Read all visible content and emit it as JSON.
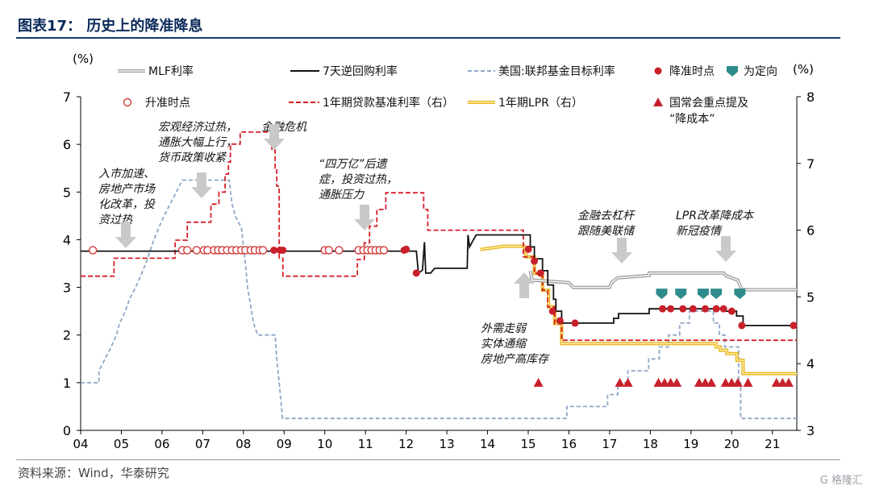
{
  "header": {
    "title": "图表17：  历史上的降准降息"
  },
  "footer": {
    "source": "资料来源：Wind，华泰研究"
  },
  "watermark": {
    "text": "G 格隆汇"
  },
  "chart_data": {
    "type": "line",
    "x_ticks": [
      "04",
      "05",
      "06",
      "07",
      "08",
      "09",
      "10",
      "11",
      "12",
      "13",
      "14",
      "15",
      "16",
      "17",
      "18",
      "19",
      "20",
      "21"
    ],
    "x_range": [
      2004.0,
      2021.6
    ],
    "y_left": {
      "unit": "(%)",
      "range": [
        0,
        7
      ],
      "ticks": [
        0,
        1,
        2,
        3,
        4,
        5,
        6,
        7
      ]
    },
    "y_right": {
      "unit": "(%)",
      "range": [
        3,
        8
      ],
      "ticks": [
        3,
        4,
        5,
        6,
        7,
        8
      ]
    },
    "legend": [
      {
        "label": "MLF利率",
        "symbol": "double-gray-line"
      },
      {
        "label": "7天逆回购利率",
        "symbol": "black-line"
      },
      {
        "label": "美国:联邦基金目标利率",
        "symbol": "blue-dash-line"
      },
      {
        "label": "降准时点",
        "symbol": "red-dot"
      },
      {
        "label": "为定向",
        "symbol": "teal-shield"
      },
      {
        "label": "升准时点",
        "symbol": "hollow-red-dot"
      },
      {
        "label": "1年期贷款基准利率（右）",
        "symbol": "red-dash-line"
      },
      {
        "label": "1年期LPR（右）",
        "symbol": "yellow-line"
      },
      {
        "label": "国常会重点提及\n“降成本”",
        "symbol": "red-triangle"
      }
    ],
    "series": {
      "fed_funds": [
        [
          2004.0,
          1.0
        ],
        [
          2004.45,
          1.0
        ],
        [
          2004.45,
          1.25
        ],
        [
          2004.6,
          1.5
        ],
        [
          2004.75,
          1.75
        ],
        [
          2004.88,
          2.0
        ],
        [
          2004.96,
          2.25
        ],
        [
          2005.1,
          2.5
        ],
        [
          2005.2,
          2.75
        ],
        [
          2005.35,
          3.0
        ],
        [
          2005.48,
          3.25
        ],
        [
          2005.6,
          3.5
        ],
        [
          2005.7,
          3.75
        ],
        [
          2005.8,
          4.0
        ],
        [
          2005.92,
          4.25
        ],
        [
          2006.05,
          4.5
        ],
        [
          2006.2,
          4.75
        ],
        [
          2006.35,
          5.0
        ],
        [
          2006.5,
          5.25
        ],
        [
          2007.65,
          5.25
        ],
        [
          2007.72,
          4.75
        ],
        [
          2007.8,
          4.5
        ],
        [
          2007.95,
          4.25
        ],
        [
          2008.05,
          3.5
        ],
        [
          2008.1,
          3.0
        ],
        [
          2008.25,
          2.25
        ],
        [
          2008.35,
          2.0
        ],
        [
          2008.78,
          2.0
        ],
        [
          2008.82,
          1.5
        ],
        [
          2008.88,
          1.0
        ],
        [
          2008.96,
          0.25
        ],
        [
          2015.95,
          0.25
        ],
        [
          2015.95,
          0.5
        ],
        [
          2016.95,
          0.5
        ],
        [
          2016.95,
          0.75
        ],
        [
          2017.2,
          0.75
        ],
        [
          2017.2,
          1.0
        ],
        [
          2017.45,
          1.0
        ],
        [
          2017.45,
          1.25
        ],
        [
          2017.96,
          1.25
        ],
        [
          2017.96,
          1.5
        ],
        [
          2018.22,
          1.5
        ],
        [
          2018.22,
          1.75
        ],
        [
          2018.45,
          1.75
        ],
        [
          2018.45,
          2.0
        ],
        [
          2018.72,
          2.0
        ],
        [
          2018.72,
          2.25
        ],
        [
          2018.96,
          2.25
        ],
        [
          2018.96,
          2.5
        ],
        [
          2019.55,
          2.5
        ],
        [
          2019.55,
          2.25
        ],
        [
          2019.7,
          2.25
        ],
        [
          2019.7,
          2.0
        ],
        [
          2019.83,
          2.0
        ],
        [
          2019.83,
          1.75
        ],
        [
          2020.17,
          1.75
        ],
        [
          2020.17,
          1.0
        ],
        [
          2020.22,
          1.0
        ],
        [
          2020.22,
          0.25
        ],
        [
          2021.6,
          0.25
        ]
      ],
      "lending_rate_right": [
        [
          2004.0,
          5.31
        ],
        [
          2004.82,
          5.31
        ],
        [
          2004.82,
          5.58
        ],
        [
          2006.32,
          5.58
        ],
        [
          2006.32,
          5.85
        ],
        [
          2006.62,
          5.85
        ],
        [
          2006.62,
          6.12
        ],
        [
          2007.2,
          6.12
        ],
        [
          2007.2,
          6.39
        ],
        [
          2007.4,
          6.39
        ],
        [
          2007.4,
          6.57
        ],
        [
          2007.55,
          6.57
        ],
        [
          2007.55,
          6.84
        ],
        [
          2007.63,
          6.84
        ],
        [
          2007.63,
          7.02
        ],
        [
          2007.68,
          7.02
        ],
        [
          2007.68,
          7.29
        ],
        [
          2007.92,
          7.29
        ],
        [
          2007.92,
          7.47
        ],
        [
          2008.7,
          7.47
        ],
        [
          2008.7,
          7.2
        ],
        [
          2008.78,
          7.2
        ],
        [
          2008.78,
          6.93
        ],
        [
          2008.82,
          6.93
        ],
        [
          2008.82,
          6.66
        ],
        [
          2008.88,
          6.66
        ],
        [
          2008.88,
          5.58
        ],
        [
          2008.97,
          5.58
        ],
        [
          2008.97,
          5.31
        ],
        [
          2010.8,
          5.31
        ],
        [
          2010.8,
          5.56
        ],
        [
          2010.97,
          5.56
        ],
        [
          2010.97,
          5.81
        ],
        [
          2011.1,
          5.81
        ],
        [
          2011.1,
          6.06
        ],
        [
          2011.28,
          6.06
        ],
        [
          2011.28,
          6.31
        ],
        [
          2011.5,
          6.31
        ],
        [
          2011.5,
          6.56
        ],
        [
          2012.43,
          6.56
        ],
        [
          2012.43,
          6.31
        ],
        [
          2012.53,
          6.31
        ],
        [
          2012.53,
          6.0
        ],
        [
          2014.88,
          6.0
        ],
        [
          2014.88,
          5.6
        ],
        [
          2015.15,
          5.6
        ],
        [
          2015.15,
          5.35
        ],
        [
          2015.35,
          5.35
        ],
        [
          2015.35,
          5.1
        ],
        [
          2015.48,
          5.1
        ],
        [
          2015.48,
          4.85
        ],
        [
          2015.65,
          4.85
        ],
        [
          2015.65,
          4.6
        ],
        [
          2015.82,
          4.6
        ],
        [
          2015.82,
          4.35
        ],
        [
          2021.6,
          4.35
        ]
      ],
      "lpr_right": [
        [
          2013.82,
          5.71
        ],
        [
          2014.4,
          5.76
        ],
        [
          2014.9,
          5.76
        ],
        [
          2014.95,
          5.6
        ],
        [
          2015.15,
          5.6
        ],
        [
          2015.15,
          5.35
        ],
        [
          2015.35,
          5.35
        ],
        [
          2015.35,
          5.1
        ],
        [
          2015.5,
          5.1
        ],
        [
          2015.5,
          4.85
        ],
        [
          2015.65,
          4.85
        ],
        [
          2015.65,
          4.6
        ],
        [
          2015.82,
          4.6
        ],
        [
          2015.82,
          4.3
        ],
        [
          2019.62,
          4.3
        ],
        [
          2019.62,
          4.25
        ],
        [
          2019.72,
          4.25
        ],
        [
          2019.72,
          4.2
        ],
        [
          2019.88,
          4.2
        ],
        [
          2019.88,
          4.15
        ],
        [
          2020.13,
          4.15
        ],
        [
          2020.13,
          4.05
        ],
        [
          2020.28,
          4.05
        ],
        [
          2020.28,
          3.85
        ],
        [
          2021.6,
          3.85
        ]
      ],
      "reverse_repo": [
        [
          2004.0,
          3.76
        ],
        [
          2012.25,
          3.76
        ],
        [
          2012.3,
          3.3
        ],
        [
          2012.4,
          3.36
        ],
        [
          2012.45,
          3.95
        ],
        [
          2012.48,
          3.3
        ],
        [
          2012.6,
          3.3
        ],
        [
          2012.7,
          3.4
        ],
        [
          2013.5,
          3.4
        ],
        [
          2013.52,
          4.1
        ],
        [
          2013.56,
          3.85
        ],
        [
          2013.62,
          3.95
        ],
        [
          2013.72,
          4.1
        ],
        [
          2015.05,
          4.1
        ],
        [
          2015.05,
          3.85
        ],
        [
          2015.15,
          3.85
        ],
        [
          2015.15,
          3.6
        ],
        [
          2015.35,
          3.6
        ],
        [
          2015.35,
          3.35
        ],
        [
          2015.48,
          3.35
        ],
        [
          2015.48,
          3.05
        ],
        [
          2015.62,
          3.05
        ],
        [
          2015.62,
          2.75
        ],
        [
          2015.68,
          2.75
        ],
        [
          2015.68,
          2.5
        ],
        [
          2015.82,
          2.5
        ],
        [
          2015.82,
          2.25
        ],
        [
          2017.1,
          2.25
        ],
        [
          2017.1,
          2.35
        ],
        [
          2017.22,
          2.35
        ],
        [
          2017.22,
          2.45
        ],
        [
          2017.97,
          2.45
        ],
        [
          2017.97,
          2.55
        ],
        [
          2018.2,
          2.55
        ],
        [
          2018.2,
          2.55
        ],
        [
          2019.86,
          2.55
        ],
        [
          2019.86,
          2.5
        ],
        [
          2020.12,
          2.5
        ],
        [
          2020.12,
          2.4
        ],
        [
          2020.28,
          2.4
        ],
        [
          2020.28,
          2.2
        ],
        [
          2021.6,
          2.2
        ]
      ],
      "mlf": [
        [
          2015.05,
          3.35
        ],
        [
          2015.1,
          3.15
        ],
        [
          2015.15,
          3.15
        ],
        [
          2016.0,
          3.1
        ],
        [
          2016.1,
          3.0
        ],
        [
          2017.0,
          3.0
        ],
        [
          2017.05,
          3.1
        ],
        [
          2017.2,
          3.2
        ],
        [
          2017.97,
          3.25
        ],
        [
          2017.97,
          3.3
        ],
        [
          2019.8,
          3.3
        ],
        [
          2019.85,
          3.25
        ],
        [
          2020.15,
          3.15
        ],
        [
          2020.25,
          2.95
        ],
        [
          2021.6,
          2.95
        ]
      ]
    },
    "rrr_cut_points": [
      [
        2012.25,
        3.3
      ],
      [
        2012.0,
        3.8
      ],
      [
        2011.95,
        3.78
      ],
      [
        2015.0,
        3.8
      ],
      [
        2015.15,
        3.55
      ],
      [
        2015.3,
        3.3
      ],
      [
        2015.6,
        2.5
      ],
      [
        2015.78,
        2.3
      ],
      [
        2016.15,
        2.25
      ],
      [
        2018.3,
        2.55
      ],
      [
        2018.5,
        2.55
      ],
      [
        2018.8,
        2.55
      ],
      [
        2019.05,
        2.55
      ],
      [
        2019.35,
        2.55
      ],
      [
        2019.62,
        2.55
      ],
      [
        2019.8,
        2.55
      ],
      [
        2020.0,
        2.5
      ],
      [
        2020.25,
        2.2
      ],
      [
        2021.52,
        2.2
      ],
      [
        2008.75,
        3.78
      ],
      [
        2008.9,
        3.78
      ],
      [
        2008.97,
        3.78
      ]
    ],
    "rrr_hike_points": [
      2004.3,
      2006.5,
      2006.62,
      2006.85,
      2007.03,
      2007.12,
      2007.28,
      2007.38,
      2007.48,
      2007.6,
      2007.72,
      2007.83,
      2007.95,
      2008.05,
      2008.18,
      2008.28,
      2008.4,
      2008.48,
      2010.0,
      2010.1,
      2010.35,
      2010.83,
      2010.95,
      2011.05,
      2011.15,
      2011.25,
      2011.35,
      2011.45
    ],
    "targeted_points": [
      2018.28,
      2018.75,
      2019.3,
      2019.62,
      2020.2
    ],
    "state_council_points": [
      2015.25,
      2017.25,
      2017.45,
      2018.2,
      2018.35,
      2018.5,
      2018.65,
      2019.2,
      2019.35,
      2019.5,
      2019.85,
      2020.0,
      2020.15,
      2020.4,
      2021.1,
      2021.25,
      2021.4
    ],
    "annotations": [
      {
        "text": "入市加速、\n房地产市场\n化改革，投\n资过热"
      },
      {
        "text": "宏观经济过热，\n通胀大幅上行，\n货币政策收紧"
      },
      {
        "text": "金融危机"
      },
      {
        "text": "“四万亿”后遗\n症，投资过热，\n通胀压力"
      },
      {
        "text": "金融去杠杆\n跟随美联储"
      },
      {
        "text": "LPR改革降成本\n新冠疫情"
      },
      {
        "text": "外需走弱\n实体通缩\n房地产高库存"
      }
    ]
  }
}
